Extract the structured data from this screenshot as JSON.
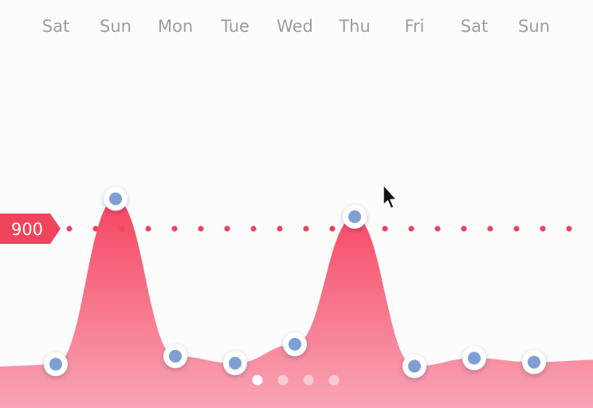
{
  "chart_data": {
    "type": "area",
    "categories": [
      "Sat",
      "Sun",
      "Mon",
      "Tue",
      "Wed",
      "Thu",
      "Fri",
      "Sat",
      "Sun"
    ],
    "values": [
      220,
      1050,
      260,
      225,
      320,
      960,
      210,
      250,
      230
    ],
    "ylim": [
      0,
      1300
    ],
    "threshold": {
      "value": 900,
      "label": "900"
    },
    "grid": false,
    "legend": "none"
  },
  "colors": {
    "area_top": "#f7445f",
    "area_bottom": "#f8a5b6",
    "threshold": "#f0445c",
    "point_fill": "#7d9fd4",
    "point_ring": "#ffffff",
    "axis_label": "#9c9ca3",
    "pager_active": "#ffffff",
    "pager_inactive": "#f6cbd6"
  },
  "pager": {
    "pages": 4,
    "current": 1
  },
  "cursor": {
    "icon": "mouse-pointer-icon"
  }
}
